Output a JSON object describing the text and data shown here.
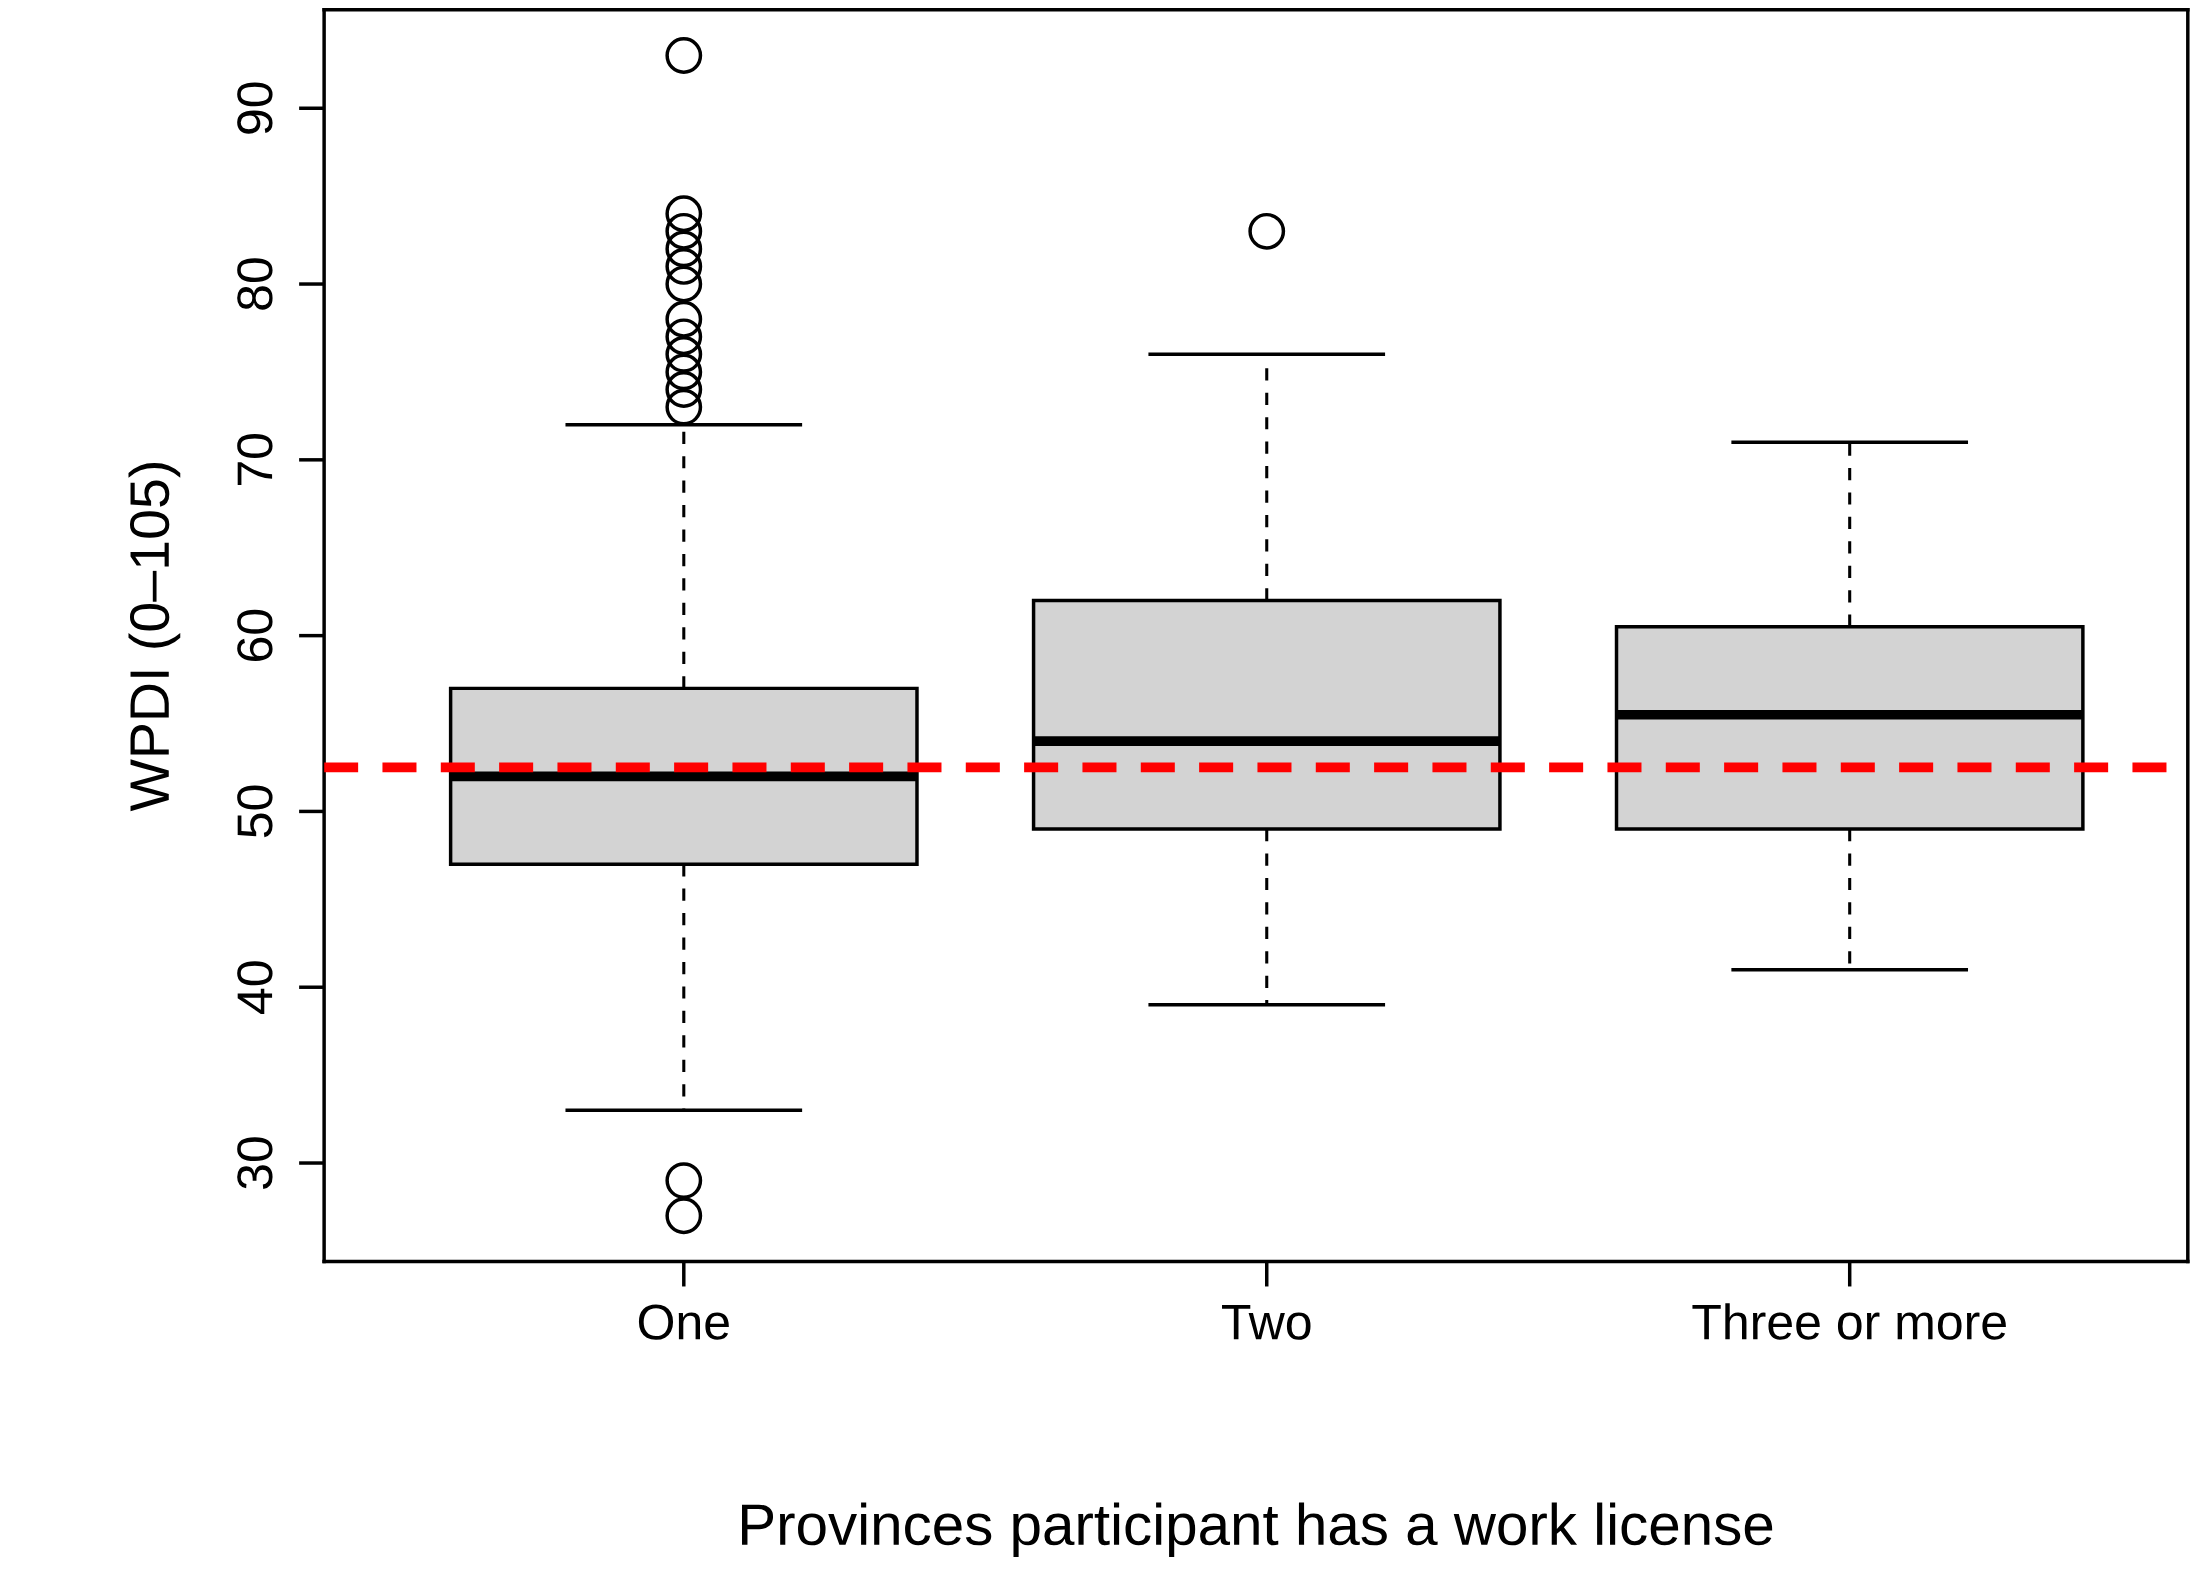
{
  "chart_data": {
    "type": "box",
    "xlabel": "Provinces participant has a work license",
    "ylabel": "WPDI (0–105)",
    "categories": [
      "One",
      "Two",
      "Three or more"
    ],
    "boxes": [
      {
        "low": 33,
        "q1": 47,
        "median": 52,
        "q3": 57,
        "high": 72,
        "outliers": [
          27,
          29,
          73,
          74,
          75,
          76,
          77,
          78,
          80,
          81,
          82,
          83,
          84,
          93
        ]
      },
      {
        "low": 39,
        "q1": 49,
        "median": 54,
        "q3": 62,
        "high": 76,
        "outliers": [
          83
        ]
      },
      {
        "low": 41,
        "q1": 49,
        "median": 55.5,
        "q3": 60.5,
        "high": 71
      }
    ],
    "color": "#d3d3d3",
    "ylim": [
      24.4,
      95.6
    ],
    "yticks": [
      30,
      40,
      50,
      60,
      70,
      80,
      90
    ],
    "ref_lines": [
      {
        "axis": "y",
        "value": 52.5,
        "color": "#ff0000",
        "line_style": "dashed"
      }
    ],
    "grid": false
  }
}
